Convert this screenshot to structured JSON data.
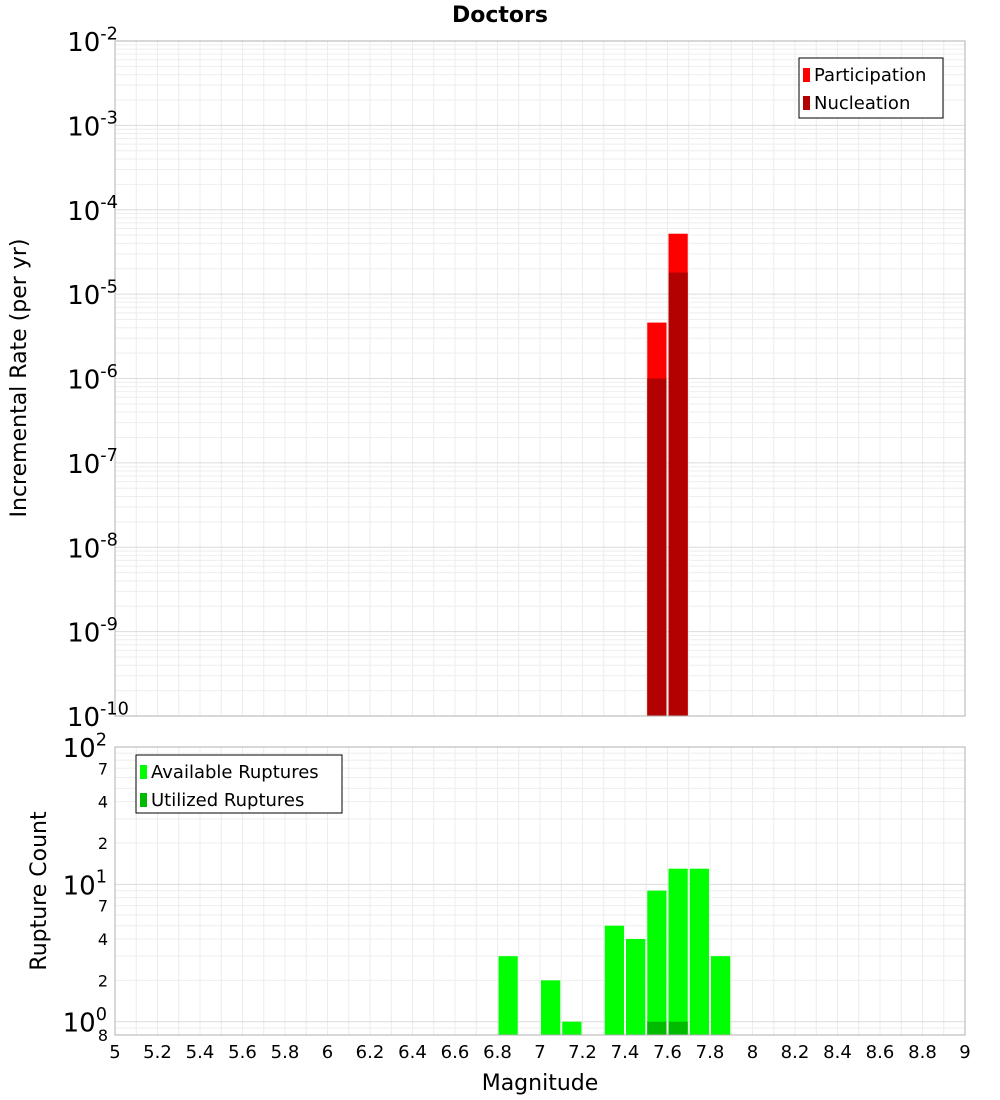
{
  "chart_data": [
    {
      "type": "bar",
      "title": "Doctors",
      "xlabel": "",
      "ylabel": "Incremental Rate (per yr)",
      "yscale": "log",
      "ylim": [
        1e-10,
        0.01
      ],
      "y_tick_mantissa": "10",
      "y_tick_exponents": [
        "-10",
        "-9",
        "-8",
        "-7",
        "-6",
        "-5",
        "-4",
        "-3",
        "-2"
      ],
      "x_bin_width": 0.1,
      "legend": {
        "position": "top-right",
        "entries": [
          "Participation",
          "Nucleation"
        ]
      },
      "grid": true,
      "series": [
        {
          "name": "Participation",
          "color": "#ff0000",
          "x": [
            7.55,
            7.65
          ],
          "values": [
            4.6e-06,
            5.2e-05
          ]
        },
        {
          "name": "Nucleation",
          "color": "#b30000",
          "x": [
            7.55,
            7.65
          ],
          "values": [
            1e-06,
            1.8e-05
          ]
        }
      ]
    },
    {
      "type": "bar",
      "title": "",
      "xlabel": "Magnitude",
      "ylabel": "Rupture Count",
      "yscale": "log",
      "ylim": [
        0.8,
        100
      ],
      "xlim": [
        5,
        9
      ],
      "x_ticks": [
        "5",
        "5.2",
        "5.4",
        "5.6",
        "5.8",
        "6",
        "6.2",
        "6.4",
        "6.6",
        "6.8",
        "7",
        "7.2",
        "7.4",
        "7.6",
        "7.8",
        "8",
        "8.2",
        "8.4",
        "8.6",
        "8.8",
        "9"
      ],
      "y_major_mantissa": "10",
      "y_major_exponents": [
        "0",
        "1",
        "2"
      ],
      "y_minor_labels": [
        {
          "value": 0.8,
          "label": "8"
        },
        {
          "value": 2,
          "label": "2"
        },
        {
          "value": 4,
          "label": "4"
        },
        {
          "value": 7,
          "label": "7"
        },
        {
          "value": 20,
          "label": "2"
        },
        {
          "value": 40,
          "label": "4"
        },
        {
          "value": 70,
          "label": "7"
        }
      ],
      "x_bin_width": 0.1,
      "legend": {
        "position": "top-left",
        "entries": [
          "Available Ruptures",
          "Utilized Ruptures"
        ]
      },
      "grid": true,
      "series": [
        {
          "name": "Available Ruptures",
          "color": "#00ff00",
          "x": [
            6.85,
            7.05,
            7.15,
            7.35,
            7.45,
            7.55,
            7.65,
            7.75,
            7.85
          ],
          "values": [
            3,
            2,
            1,
            5,
            4,
            9,
            13,
            13,
            3
          ]
        },
        {
          "name": "Utilized Ruptures",
          "color": "#00bb00",
          "x": [
            7.55,
            7.65
          ],
          "values": [
            1,
            1
          ]
        }
      ]
    }
  ]
}
